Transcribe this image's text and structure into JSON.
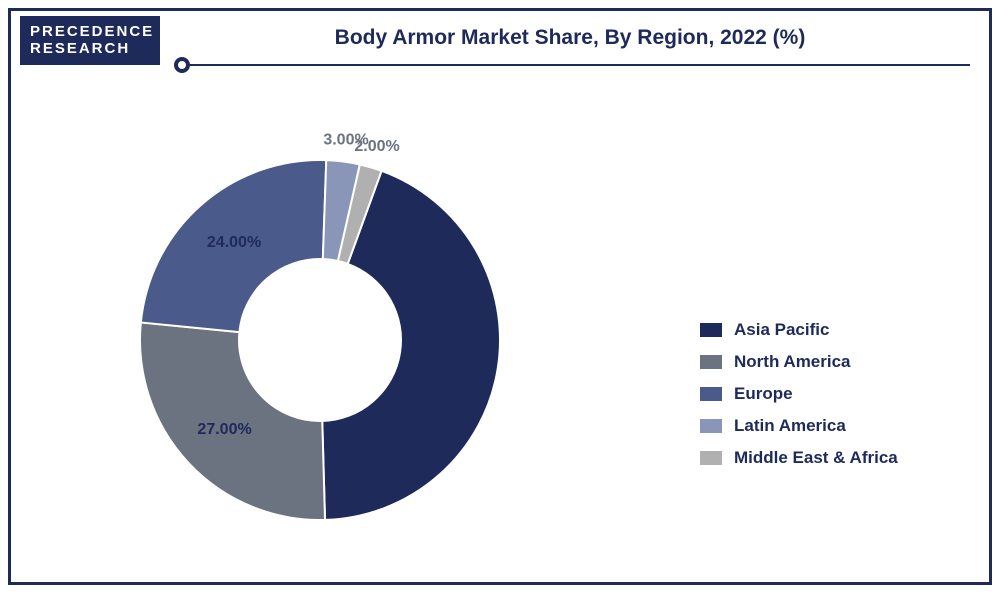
{
  "logo": {
    "line1": "PRECEDENCE",
    "line2": "RESEARCH"
  },
  "title": "Body Armor Market Share, By Region, 2022 (%)",
  "chart": {
    "type": "pie",
    "inner_radius_ratio": 0.45,
    "background_color": "#ffffff",
    "border_color": "#1e2a5a",
    "label_fontsize": 16,
    "label_fontweight": "bold",
    "slices": [
      {
        "label": "Asia Pacific",
        "value": 44,
        "display": "44.00%",
        "color": "#1e2a5a"
      },
      {
        "label": "North America",
        "value": 27,
        "display": "27.00%",
        "color": "#6b7280"
      },
      {
        "label": "Europe",
        "value": 24,
        "display": "24.00%",
        "color": "#4a5a8a"
      },
      {
        "label": "Latin America",
        "value": 3,
        "display": "3.00%",
        "color": "#8a96b8"
      },
      {
        "label": "Middle East & Africa",
        "value": 2,
        "display": "2.00%",
        "color": "#b0b0b0"
      }
    ],
    "start_angle_deg": -70
  },
  "legend": {
    "items": [
      {
        "label": "Asia Pacific",
        "color": "#1e2a5a"
      },
      {
        "label": "North America",
        "color": "#6b7280"
      },
      {
        "label": "Europe",
        "color": "#4a5a8a"
      },
      {
        "label": "Latin America",
        "color": "#8a96b8"
      },
      {
        "label": "Middle East & Africa",
        "color": "#b0b0b0"
      }
    ]
  }
}
